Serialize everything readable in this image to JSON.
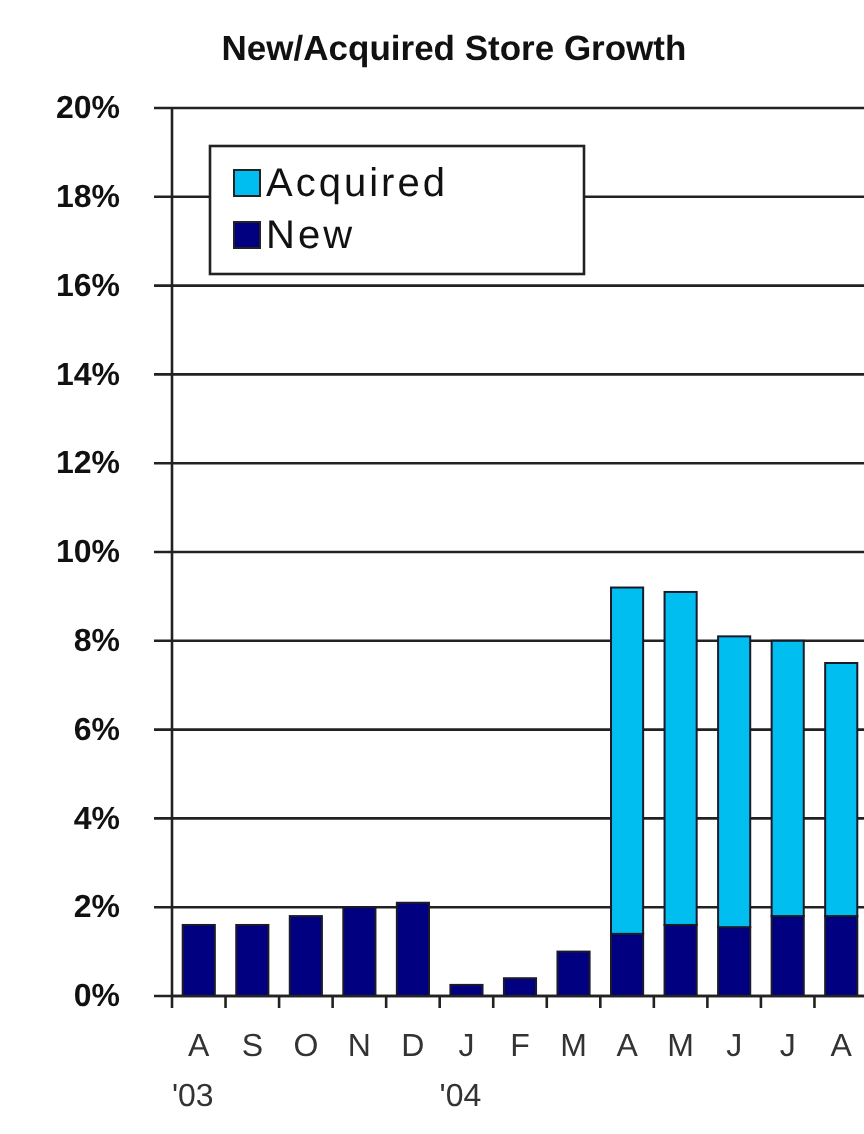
{
  "chart_data": {
    "type": "bar",
    "title": "New/Acquired Store Growth",
    "categories": [
      "A\n'03",
      "S",
      "O",
      "N",
      "D",
      "J\n'04",
      "F",
      "M",
      "A",
      "M",
      "J",
      "J",
      "A"
    ],
    "stacked": true,
    "series": [
      {
        "name": "New",
        "color": "#000080",
        "values": [
          1.6,
          1.6,
          1.8,
          2.0,
          2.1,
          0.25,
          0.4,
          1.0,
          1.4,
          1.6,
          1.55,
          1.8,
          1.8
        ]
      },
      {
        "name": "Acquired",
        "color": "#00bff0",
        "values": [
          null,
          null,
          null,
          null,
          null,
          null,
          null,
          null,
          7.8,
          7.5,
          6.55,
          6.2,
          5.7
        ]
      }
    ],
    "ylim": [
      0,
      20
    ],
    "yticks": [
      {
        "value": 0,
        "label": "0%"
      },
      {
        "value": 2,
        "label": "2%"
      },
      {
        "value": 4,
        "label": "4%"
      },
      {
        "value": 6,
        "label": "6%"
      },
      {
        "value": 8,
        "label": "8%"
      },
      {
        "value": 10,
        "label": "10%"
      },
      {
        "value": 12,
        "label": "12%"
      },
      {
        "value": 14,
        "label": "14%"
      },
      {
        "value": 16,
        "label": "16%"
      },
      {
        "value": 18,
        "label": "18%"
      },
      {
        "value": 20,
        "label": "20%"
      }
    ],
    "grid": "y",
    "legend": "top left"
  }
}
